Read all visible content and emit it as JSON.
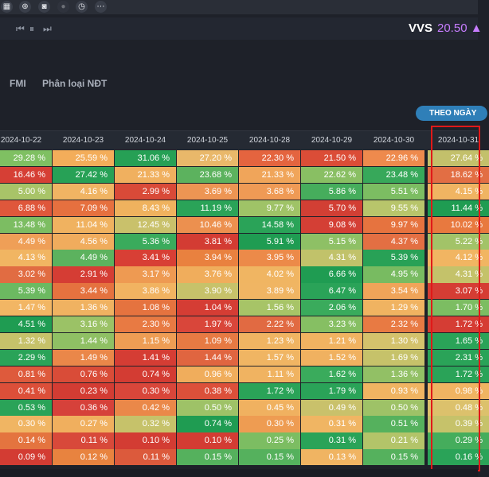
{
  "toolbar": {
    "icons": [
      {
        "name": "grid-icon",
        "glyph": "▦"
      },
      {
        "name": "zoom-icon",
        "glyph": "⊕"
      },
      {
        "name": "camera-icon",
        "glyph": "◙"
      },
      {
        "name": "disabled-icon",
        "glyph": "●"
      },
      {
        "name": "clock-icon",
        "glyph": "◷"
      },
      {
        "name": "more-icon",
        "glyph": "⋯"
      }
    ]
  },
  "player": {
    "prev_glyph": "⏮",
    "pause_glyph": "⏸",
    "next_glyph": "⏭"
  },
  "quote": {
    "ticker": "VVS",
    "price": "20.50",
    "price_color": "#c77dff"
  },
  "tabs": [
    "FMI",
    "Phân loại NĐT"
  ],
  "view_button": {
    "label": "THEO NGÀY"
  },
  "table": {
    "dates": [
      "2024-10-22",
      "2024-10-23",
      "2024-10-24",
      "2024-10-25",
      "2024-10-28",
      "2024-10-29",
      "2024-10-30",
      "2024-10-31"
    ],
    "rows": [
      [
        {
          "v": "29.28 %",
          "c": "#7fc062"
        },
        {
          "v": "25.59 %",
          "c": "#f3ad5a"
        },
        {
          "v": "31.06 %",
          "c": "#26a055"
        },
        {
          "v": "27.20 %",
          "c": "#e9b86a"
        },
        {
          "v": "22.30 %",
          "c": "#e4643f"
        },
        {
          "v": "21.50 %",
          "c": "#db4d37"
        },
        {
          "v": "22.96 %",
          "c": "#ee8a4d"
        },
        {
          "v": "27.64 %",
          "c": "#c3c06b"
        }
      ],
      [
        {
          "v": "16.46 %",
          "c": "#d63f35"
        },
        {
          "v": "27.42 %",
          "c": "#27a156"
        },
        {
          "v": "21.33 %",
          "c": "#f0b05f"
        },
        {
          "v": "23.68 %",
          "c": "#5cb25e"
        },
        {
          "v": "21.33 %",
          "c": "#f0a55a"
        },
        {
          "v": "22.62 %",
          "c": "#89bf63"
        },
        {
          "v": "23.48 %",
          "c": "#37a85a"
        },
        {
          "v": "18.62 %",
          "c": "#e26e44"
        }
      ],
      [
        {
          "v": "5.00 %",
          "c": "#a8c468"
        },
        {
          "v": "4.16 %",
          "c": "#f0b463"
        },
        {
          "v": "2.99 %",
          "c": "#d94a38"
        },
        {
          "v": "3.69 %",
          "c": "#ed9553"
        },
        {
          "v": "3.68 %",
          "c": "#ef9a55"
        },
        {
          "v": "5.86 %",
          "c": "#46ad5c"
        },
        {
          "v": "5.51 %",
          "c": "#7cbd62"
        },
        {
          "v": "4.15 %",
          "c": "#f0b462"
        }
      ],
      [
        {
          "v": "6.88 %",
          "c": "#df573b"
        },
        {
          "v": "7.09 %",
          "c": "#e6703f"
        },
        {
          "v": "8.43 %",
          "c": "#efb25e"
        },
        {
          "v": "11.19 %",
          "c": "#2aa358"
        },
        {
          "v": "9.77 %",
          "c": "#9fc367"
        },
        {
          "v": "5.70 %",
          "c": "#d23f34"
        },
        {
          "v": "9.55 %",
          "c": "#b8c56b"
        },
        {
          "v": "11.44 %",
          "c": "#1f9c52"
        }
      ],
      [
        {
          "v": "13.48 %",
          "c": "#7cbd62"
        },
        {
          "v": "11.04 %",
          "c": "#f0b260"
        },
        {
          "v": "12.45 %",
          "c": "#c9c16b"
        },
        {
          "v": "10.46 %",
          "c": "#ec904f"
        },
        {
          "v": "14.58 %",
          "c": "#2aa358"
        },
        {
          "v": "9.08 %",
          "c": "#d43f35"
        },
        {
          "v": "9.97 %",
          "c": "#e6733f"
        },
        {
          "v": "10.02 %",
          "c": "#e8793f"
        }
      ],
      [
        {
          "v": "4.49 %",
          "c": "#ef9f57"
        },
        {
          "v": "4.56 %",
          "c": "#f0ac5d"
        },
        {
          "v": "5.36 %",
          "c": "#3aab5c"
        },
        {
          "v": "3.81 %",
          "c": "#d33c33"
        },
        {
          "v": "5.91 %",
          "c": "#1f9c52"
        },
        {
          "v": "5.15 %",
          "c": "#8ec065"
        },
        {
          "v": "4.37 %",
          "c": "#e36f43"
        },
        {
          "v": "5.22 %",
          "c": "#a2c368"
        }
      ],
      [
        {
          "v": "4.13 %",
          "c": "#f1b562"
        },
        {
          "v": "4.49 %",
          "c": "#5cb25e"
        },
        {
          "v": "3.41 %",
          "c": "#d83f35"
        },
        {
          "v": "3.94 %",
          "c": "#e9813f"
        },
        {
          "v": "3.95 %",
          "c": "#ec8a49"
        },
        {
          "v": "4.31 %",
          "c": "#c1c26a"
        },
        {
          "v": "5.39 %",
          "c": "#28a156"
        },
        {
          "v": "4.12 %",
          "c": "#f1b562"
        }
      ],
      [
        {
          "v": "3.02 %",
          "c": "#e16c42"
        },
        {
          "v": "2.91 %",
          "c": "#d53d34"
        },
        {
          "v": "3.17 %",
          "c": "#ee9a52"
        },
        {
          "v": "3.76 %",
          "c": "#f0ad5c"
        },
        {
          "v": "4.02 %",
          "c": "#f0b562"
        },
        {
          "v": "6.66 %",
          "c": "#1f9c52"
        },
        {
          "v": "4.95 %",
          "c": "#78bb61"
        },
        {
          "v": "4.31 %",
          "c": "#c4c26a"
        }
      ],
      [
        {
          "v": "5.39 %",
          "c": "#6cb961"
        },
        {
          "v": "3.44 %",
          "c": "#e5723f"
        },
        {
          "v": "3.86 %",
          "c": "#f1b361"
        },
        {
          "v": "3.90 %",
          "c": "#c7c26a"
        },
        {
          "v": "3.89 %",
          "c": "#f0b563"
        },
        {
          "v": "6.47 %",
          "c": "#2aa358"
        },
        {
          "v": "3.54 %",
          "c": "#f0a459"
        },
        {
          "v": "3.07 %",
          "c": "#d53d34"
        }
      ],
      [
        {
          "v": "1.47 %",
          "c": "#f2b664"
        },
        {
          "v": "1.36 %",
          "c": "#f0b261"
        },
        {
          "v": "1.08 %",
          "c": "#e5733f"
        },
        {
          "v": "1.04 %",
          "c": "#d53d34"
        },
        {
          "v": "1.56 %",
          "c": "#a7c467"
        },
        {
          "v": "2.06 %",
          "c": "#3aab5c"
        },
        {
          "v": "1.29 %",
          "c": "#f0b361"
        },
        {
          "v": "1.70 %",
          "c": "#7cbd62"
        }
      ],
      [
        {
          "v": "4.51 %",
          "c": "#1f9c52"
        },
        {
          "v": "3.16 %",
          "c": "#9bc266"
        },
        {
          "v": "2.30 %",
          "c": "#e87a43"
        },
        {
          "v": "1.97 %",
          "c": "#d9463a"
        },
        {
          "v": "2.22 %",
          "c": "#e16a42"
        },
        {
          "v": "3.23 %",
          "c": "#86bf63"
        },
        {
          "v": "2.32 %",
          "c": "#e87a43"
        },
        {
          "v": "1.72 %",
          "c": "#d53d34"
        }
      ],
      [
        {
          "v": "1.32 %",
          "c": "#c6c26a"
        },
        {
          "v": "1.44 %",
          "c": "#8fc064"
        },
        {
          "v": "1.15 %",
          "c": "#ee9d54"
        },
        {
          "v": "1.09 %",
          "c": "#e77a43"
        },
        {
          "v": "1.23 %",
          "c": "#f0b462"
        },
        {
          "v": "1.21 %",
          "c": "#f1b361"
        },
        {
          "v": "1.30 %",
          "c": "#d4c26c"
        },
        {
          "v": "1.65 %",
          "c": "#2aa358"
        }
      ],
      [
        {
          "v": "2.29 %",
          "c": "#2aa358"
        },
        {
          "v": "1.49 %",
          "c": "#ea8749"
        },
        {
          "v": "1.41 %",
          "c": "#d53d34"
        },
        {
          "v": "1.44 %",
          "c": "#e06540"
        },
        {
          "v": "1.57 %",
          "c": "#f0b563"
        },
        {
          "v": "1.52 %",
          "c": "#f0b160"
        },
        {
          "v": "1.69 %",
          "c": "#c6c26a"
        },
        {
          "v": "2.31 %",
          "c": "#2aa358"
        }
      ],
      [
        {
          "v": "0.81 %",
          "c": "#de5a3c"
        },
        {
          "v": "0.76 %",
          "c": "#d94c38"
        },
        {
          "v": "0.74 %",
          "c": "#d33c33"
        },
        {
          "v": "0.96 %",
          "c": "#f0ad5c"
        },
        {
          "v": "1.11 %",
          "c": "#f0b361"
        },
        {
          "v": "1.62 %",
          "c": "#3aab5c"
        },
        {
          "v": "1.36 %",
          "c": "#92c065"
        },
        {
          "v": "1.72 %",
          "c": "#2aa358"
        }
      ],
      [
        {
          "v": "0.41 %",
          "c": "#dc4f39"
        },
        {
          "v": "0.23 %",
          "c": "#d33c33"
        },
        {
          "v": "0.30 %",
          "c": "#d9463a"
        },
        {
          "v": "0.38 %",
          "c": "#dc503a"
        },
        {
          "v": "1.72 %",
          "c": "#2aa358"
        },
        {
          "v": "1.79 %",
          "c": "#2aa358"
        },
        {
          "v": "0.93 %",
          "c": "#f0b462"
        },
        {
          "v": "0.98 %",
          "c": "#f0b462"
        }
      ],
      [
        {
          "v": "0.53 %",
          "c": "#2aa358"
        },
        {
          "v": "0.36 %",
          "c": "#d6413a"
        },
        {
          "v": "0.42 %",
          "c": "#ea8849"
        },
        {
          "v": "0.50 %",
          "c": "#9ec267"
        },
        {
          "v": "0.45 %",
          "c": "#f0b160"
        },
        {
          "v": "0.49 %",
          "c": "#c9c16b"
        },
        {
          "v": "0.50 %",
          "c": "#9ec267"
        },
        {
          "v": "0.48 %",
          "c": "#dcc16c"
        }
      ],
      [
        {
          "v": "0.30 %",
          "c": "#f0b563"
        },
        {
          "v": "0.27 %",
          "c": "#f0af5e"
        },
        {
          "v": "0.32 %",
          "c": "#c6c26a"
        },
        {
          "v": "0.74 %",
          "c": "#1f9c52"
        },
        {
          "v": "0.30 %",
          "c": "#ee9c52"
        },
        {
          "v": "0.31 %",
          "c": "#f0b563"
        },
        {
          "v": "0.51 %",
          "c": "#55b15d"
        },
        {
          "v": "0.39 %",
          "c": "#c6c26a"
        }
      ],
      [
        {
          "v": "0.14 %",
          "c": "#e4743f"
        },
        {
          "v": "0.11 %",
          "c": "#d8493a"
        },
        {
          "v": "0.10 %",
          "c": "#d33c33"
        },
        {
          "v": "0.10 %",
          "c": "#d33c33"
        },
        {
          "v": "0.25 %",
          "c": "#7cbd62"
        },
        {
          "v": "0.31 %",
          "c": "#2aa358"
        },
        {
          "v": "0.21 %",
          "c": "#b3c469"
        },
        {
          "v": "0.29 %",
          "c": "#45ad5c"
        }
      ],
      [
        {
          "v": "0.09 %",
          "c": "#d33c33"
        },
        {
          "v": "0.12 %",
          "c": "#e8833f"
        },
        {
          "v": "0.11 %",
          "c": "#dc5a3c"
        },
        {
          "v": "0.15 %",
          "c": "#55b15d"
        },
        {
          "v": "0.15 %",
          "c": "#55b15d"
        },
        {
          "v": "0.13 %",
          "c": "#f0b462"
        },
        {
          "v": "0.15 %",
          "c": "#55b15d"
        },
        {
          "v": "0.16 %",
          "c": "#2aa358"
        }
      ]
    ]
  }
}
